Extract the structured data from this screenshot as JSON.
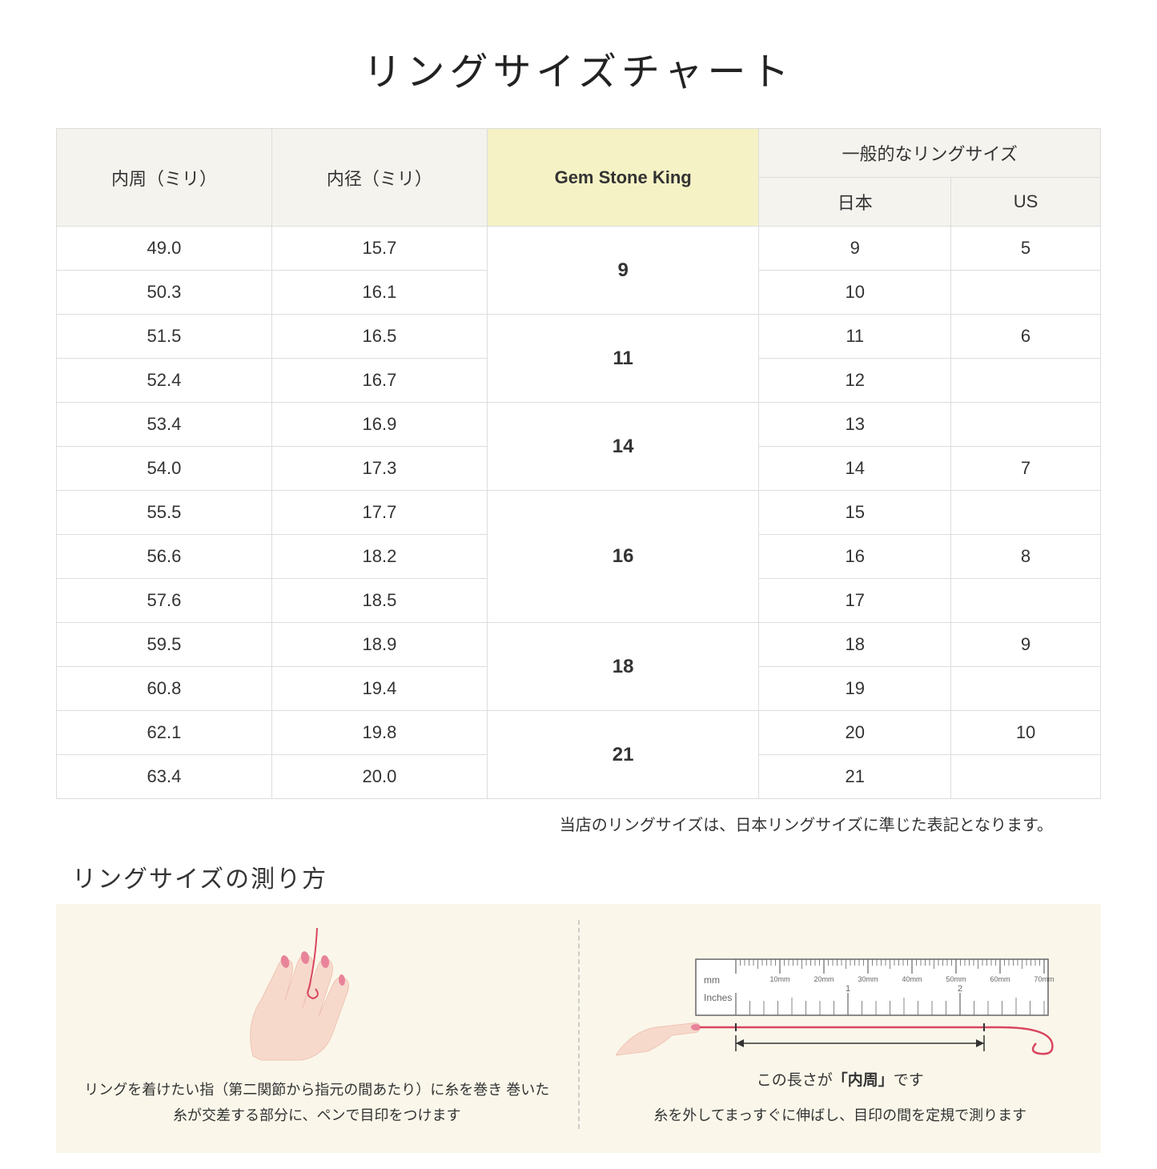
{
  "title": "リングサイズチャート",
  "table": {
    "headers": {
      "circumference": "内周（ミリ）",
      "diameter": "内径（ミリ）",
      "gsk": "Gem Stone King",
      "general_group": "一般的なリングサイズ",
      "japan": "日本",
      "us": "US"
    },
    "groups": [
      {
        "gsk": "9",
        "rows": [
          {
            "c": "49.0",
            "d": "15.7",
            "jp": "9",
            "us": "5"
          },
          {
            "c": "50.3",
            "d": "16.1",
            "jp": "10",
            "us": ""
          }
        ]
      },
      {
        "gsk": "11",
        "rows": [
          {
            "c": "51.5",
            "d": "16.5",
            "jp": "11",
            "us": "6"
          },
          {
            "c": "52.4",
            "d": "16.7",
            "jp": "12",
            "us": ""
          }
        ]
      },
      {
        "gsk": "14",
        "rows": [
          {
            "c": "53.4",
            "d": "16.9",
            "jp": "13",
            "us": ""
          },
          {
            "c": "54.0",
            "d": "17.3",
            "jp": "14",
            "us": "7"
          }
        ]
      },
      {
        "gsk": "16",
        "rows": [
          {
            "c": "55.5",
            "d": "17.7",
            "jp": "15",
            "us": ""
          },
          {
            "c": "56.6",
            "d": "18.2",
            "jp": "16",
            "us": "8"
          },
          {
            "c": "57.6",
            "d": "18.5",
            "jp": "17",
            "us": ""
          }
        ]
      },
      {
        "gsk": "18",
        "rows": [
          {
            "c": "59.5",
            "d": "18.9",
            "jp": "18",
            "us": "9"
          },
          {
            "c": "60.8",
            "d": "19.4",
            "jp": "19",
            "us": ""
          }
        ]
      },
      {
        "gsk": "21",
        "rows": [
          {
            "c": "62.1",
            "d": "19.8",
            "jp": "20",
            "us": "10"
          },
          {
            "c": "63.4",
            "d": "20.0",
            "jp": "21",
            "us": ""
          }
        ]
      }
    ]
  },
  "note": "当店のリングサイズは、日本リングサイズに準じた表記となります。",
  "subtitle": "リングサイズの測り方",
  "instructions": {
    "left": "リングを着けたい指（第二関節から指元の間あたり）に糸を巻き\n巻いた糸が交差する部分に、ペンで目印をつけます",
    "right_label_pre": "この長さが",
    "right_label_bold": "「内周」",
    "right_label_post": "です",
    "right": "糸を外してまっすぐに伸ばし、目印の間を定規で測ります"
  },
  "ruler": {
    "mm_label": "mm",
    "inch_label": "Inches",
    "mm_ticks": [
      "10mm",
      "20mm",
      "30mm",
      "40mm",
      "50mm",
      "60mm",
      "70mm"
    ],
    "inch_ticks": [
      "1",
      "2"
    ]
  },
  "colors": {
    "header_bg": "#f5f3ee",
    "gsk_bg": "#f5f2c5",
    "border": "#ddd",
    "inst_bg": "#faf7ea",
    "skin": "#f7d9cc",
    "skin_dark": "#eec4b4",
    "nail": "#e8849a",
    "thread": "#d94560",
    "ruler_border": "#666"
  }
}
